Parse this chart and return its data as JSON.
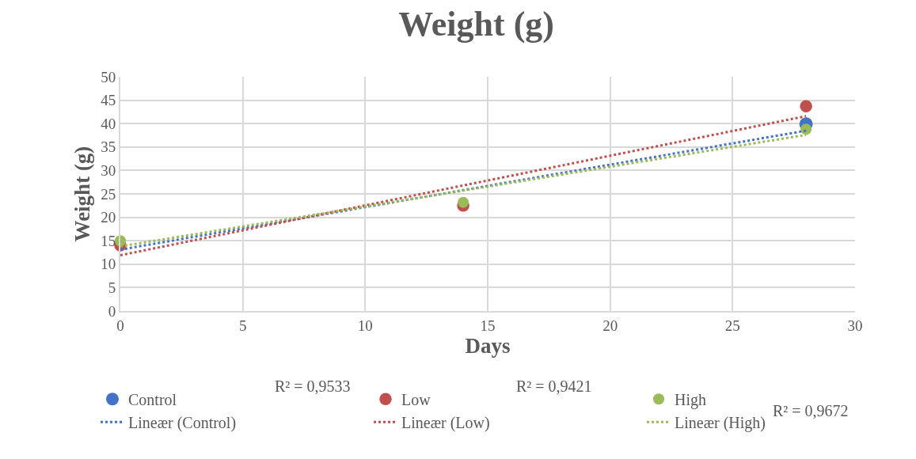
{
  "chart_data": {
    "type": "scatter",
    "title": "Weight (g)",
    "xlabel": "Days",
    "ylabel": "Weight (g)",
    "x": [
      0,
      14,
      28
    ],
    "series": [
      {
        "name": "Control",
        "color": "#4472c4",
        "values": [
          null,
          null,
          39.9
        ]
      },
      {
        "name": "Low",
        "color": "#c0504d",
        "values": [
          14,
          22.5,
          43.7
        ]
      },
      {
        "name": "High",
        "color": "#9bbb59",
        "values": [
          15,
          23.2,
          38.8
        ]
      },
      {
        "name": "Lineær (Control)",
        "type": "line",
        "marker": "none",
        "line_style": "dotted",
        "color": "#4472c4",
        "values": [
          13.1,
          25.8,
          38.5
        ]
      },
      {
        "name": "Lineær (Low)",
        "type": "line",
        "marker": "none",
        "line_style": "dotted",
        "color": "#c0504d",
        "values": [
          11.9,
          26.8,
          41.6
        ]
      },
      {
        "name": "Lineær (High)",
        "type": "line",
        "marker": "none",
        "line_style": "dotted",
        "color": "#9bbb59",
        "values": [
          13.8,
          25.7,
          37.6
        ]
      }
    ],
    "annotations": [
      "R² = 0,9533",
      "R² = 0,9421",
      "R² = 0,9672"
    ],
    "xlim": [
      0,
      30
    ],
    "xticks": [
      0,
      5,
      10,
      15,
      20,
      25,
      30
    ],
    "ylim": [
      0,
      50
    ],
    "yticks": [
      0,
      5,
      10,
      15,
      20,
      25,
      30,
      35,
      40,
      45,
      50
    ],
    "grid": true,
    "legend": "bottom",
    "marker": "circle"
  }
}
